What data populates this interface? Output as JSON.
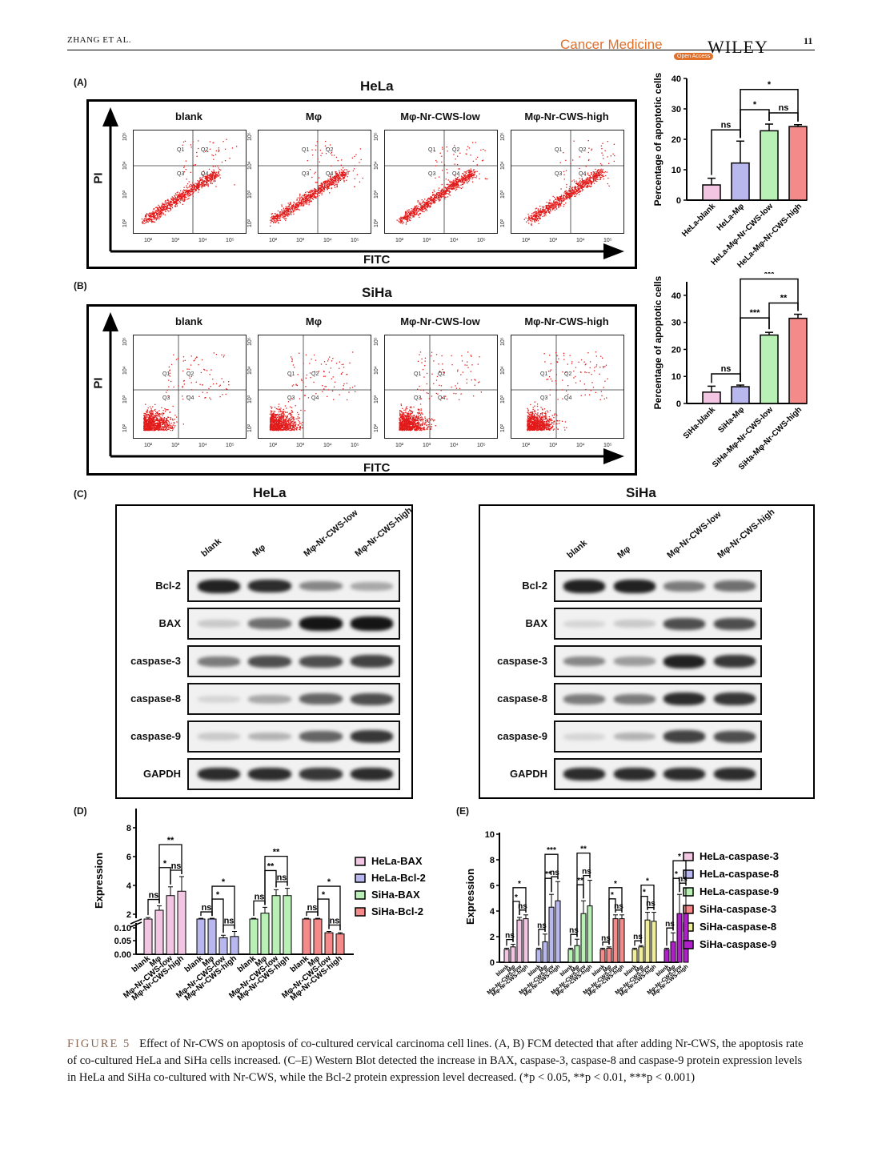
{
  "header": {
    "authors": "ZHANG ET AL.",
    "journal": "Cancer Medicine",
    "open_access": "Open Access",
    "publisher": "WILEY",
    "page": "11"
  },
  "panels": {
    "A": "(A)",
    "B": "(B)",
    "C": "(C)",
    "D": "(D)",
    "E": "(E)"
  },
  "flow": {
    "hela_title": "HeLa",
    "siha_title": "SiHa",
    "conditions": [
      "blank",
      "Mφ",
      "Mφ-Nr-CWS-low",
      "Mφ-Nr-CWS-high"
    ],
    "y_axis": "PI",
    "x_axis": "FITC",
    "quadrants": [
      "Q1",
      "Q2",
      "Q3",
      "Q4"
    ],
    "x_ticks": [
      "10²",
      "10³",
      "10⁴",
      "10⁵"
    ],
    "y_ticks": [
      "10²",
      "10³",
      "10⁴",
      "10⁵"
    ]
  },
  "western": {
    "hela_title": "HeLa",
    "siha_title": "SiHa",
    "lanes": [
      "blank",
      "Mφ",
      "Mφ-Nr-CWS-low",
      "Mφ-Nr-CWS-high"
    ],
    "proteins": [
      "Bcl-2",
      "BAX",
      "caspase-3",
      "caspase-8",
      "caspase-9",
      "GAPDH"
    ],
    "band_intensity_hela": [
      [
        0.9,
        0.85,
        0.45,
        0.3
      ],
      [
        0.15,
        0.55,
        0.95,
        0.95
      ],
      [
        0.5,
        0.7,
        0.7,
        0.75
      ],
      [
        0.1,
        0.3,
        0.6,
        0.7
      ],
      [
        0.15,
        0.25,
        0.6,
        0.8
      ],
      [
        0.85,
        0.85,
        0.8,
        0.85
      ]
    ],
    "band_intensity_siha": [
      [
        0.9,
        0.9,
        0.5,
        0.55
      ],
      [
        0.1,
        0.15,
        0.7,
        0.7
      ],
      [
        0.45,
        0.35,
        0.9,
        0.8
      ],
      [
        0.5,
        0.5,
        0.85,
        0.8
      ],
      [
        0.1,
        0.25,
        0.75,
        0.7
      ],
      [
        0.85,
        0.85,
        0.85,
        0.85
      ]
    ]
  },
  "chart_data": [
    {
      "type": "bar",
      "categories": [
        "HeLa-blank",
        "HeLa-Mφ",
        "HeLa-Mφ-Nr-CWS-low",
        "HeLa-Mφ-Nr-CWS-high"
      ],
      "values": [
        5,
        12.2,
        22.8,
        24.2
      ],
      "errors": [
        2.2,
        7.2,
        2.2,
        0.6
      ],
      "colors": [
        "#f2c6e3",
        "#b9b8ee",
        "#b8f0b5",
        "#f58a8a"
      ],
      "ylabel": "Percentage of apoptotic cells",
      "ylim": [
        0,
        40
      ],
      "yticks": [
        0,
        10,
        20,
        30,
        40
      ],
      "significance": [
        {
          "pair": [
            0,
            1
          ],
          "label": "ns"
        },
        {
          "pair": [
            1,
            2
          ],
          "label": "*"
        },
        {
          "pair": [
            1,
            3
          ],
          "label": "*"
        },
        {
          "pair": [
            2,
            3
          ],
          "label": "ns"
        }
      ]
    },
    {
      "type": "bar",
      "categories": [
        "SiHa-blank",
        "SiHa-Mφ",
        "SiHa-Mφ-Nr-CWS-low",
        "SiHa-Mφ-Nr-CWS-high"
      ],
      "values": [
        4.2,
        6.2,
        25.3,
        31.5
      ],
      "errors": [
        2.2,
        0.6,
        1.0,
        1.5
      ],
      "colors": [
        "#f2c6e3",
        "#b9b8ee",
        "#b8f0b5",
        "#f58a8a"
      ],
      "ylabel": "Percentage of apoptotic cells",
      "ylim": [
        0,
        45
      ],
      "yticks": [
        0,
        10,
        20,
        30,
        40
      ],
      "significance": [
        {
          "pair": [
            0,
            1
          ],
          "label": "ns"
        },
        {
          "pair": [
            1,
            2
          ],
          "label": "***"
        },
        {
          "pair": [
            1,
            3
          ],
          "label": "***"
        },
        {
          "pair": [
            2,
            3
          ],
          "label": "**"
        }
      ]
    },
    {
      "type": "bar",
      "ylabel": "Expression",
      "axis_break": true,
      "yticks": [
        "0.00",
        "0.05",
        "0.10",
        "2",
        "4",
        "6",
        "8"
      ],
      "categories": [
        "blank",
        "Mφ",
        "Mφ-Nr-CWS-low",
        "Mφ-Nr-CWS-high"
      ],
      "series": [
        {
          "name": "HeLa-BAX",
          "values": [
            1.0,
            1.6,
            2.6,
            2.9
          ],
          "errors": [
            0.1,
            0.3,
            0.6,
            1.0
          ],
          "color": "#f2c6e3",
          "sig": [
            "ns",
            "*",
            "ns",
            "**"
          ]
        },
        {
          "name": "HeLa-Bcl-2",
          "values": [
            1.0,
            1.0,
            0.065,
            0.07
          ],
          "errors": [
            0.05,
            0.05,
            0.01,
            0.02
          ],
          "color": "#b9b8ee",
          "sig": [
            "ns",
            "*",
            "ns",
            "*"
          ]
        },
        {
          "name": "SiHa-BAX",
          "values": [
            1.0,
            1.4,
            2.6,
            2.6
          ],
          "errors": [
            0.05,
            0.4,
            0.4,
            0.5
          ],
          "color": "#b8f0b5",
          "sig": [
            "ns",
            "**",
            "ns",
            "**"
          ]
        },
        {
          "name": "SiHa-Bcl-2",
          "values": [
            1.0,
            1.0,
            0.085,
            0.08
          ],
          "errors": [
            0.05,
            0.05,
            0.005,
            0.005
          ],
          "color": "#f58a8a",
          "sig": [
            "ns",
            "*",
            "ns",
            "*"
          ]
        }
      ]
    },
    {
      "type": "bar",
      "ylabel": "Expression",
      "ylim": [
        0,
        10
      ],
      "yticks": [
        0,
        2,
        4,
        6,
        8,
        10
      ],
      "categories": [
        "blank",
        "Mφ",
        "Mφ-Nr-CWS-low",
        "Mφ-Nr-CWS-high"
      ],
      "series": [
        {
          "name": "HeLa-caspase-3",
          "values": [
            1.0,
            1.2,
            3.3,
            3.4
          ],
          "errors": [
            0.1,
            0.2,
            0.2,
            0.3
          ],
          "color": "#f2c6e3",
          "sig": [
            "ns",
            "*",
            "ns",
            "*"
          ]
        },
        {
          "name": "HeLa-caspase-8",
          "values": [
            1.0,
            1.6,
            4.3,
            4.8
          ],
          "errors": [
            0.1,
            0.6,
            1.0,
            1.5
          ],
          "color": "#b9b8ee",
          "sig": [
            "ns",
            "**",
            "ns",
            "***"
          ]
        },
        {
          "name": "HeLa-caspase-9",
          "values": [
            1.0,
            1.3,
            3.8,
            4.4
          ],
          "errors": [
            0.1,
            0.5,
            1.0,
            2.0
          ],
          "color": "#b8f0b5",
          "sig": [
            "ns",
            "**",
            "ns",
            "**"
          ]
        },
        {
          "name": "SiHa-caspase-3",
          "values": [
            1.0,
            1.1,
            3.4,
            3.4
          ],
          "errors": [
            0.1,
            0.1,
            0.3,
            0.3
          ],
          "color": "#f58a8a",
          "sig": [
            "ns",
            "*",
            "ns",
            "*"
          ]
        },
        {
          "name": "SiHa-caspase-8",
          "values": [
            1.0,
            1.2,
            3.3,
            3.2
          ],
          "errors": [
            0.1,
            0.1,
            0.6,
            0.7
          ],
          "color": "#f0ee9a",
          "sig": [
            "ns",
            "*",
            "ns",
            "*"
          ]
        },
        {
          "name": "SiHa-caspase-9",
          "values": [
            1.0,
            1.6,
            3.8,
            3.8
          ],
          "errors": [
            0.1,
            0.7,
            1.5,
            2.0
          ],
          "color": "#b020c8",
          "sig": [
            "ns",
            "*",
            "ns",
            "*"
          ]
        }
      ]
    }
  ],
  "caption": {
    "label": "FIGURE 5",
    "text": "Effect of Nr-CWS on apoptosis of co-cultured cervical carcinoma cell lines. (A, B) FCM detected that after adding Nr-CWS, the apoptosis rate of co-cultured HeLa and SiHa cells increased. (C–E) Western Blot detected the increase in BAX, caspase-3, caspase-8 and caspase-9 protein expression levels in HeLa and SiHa co-cultured with Nr-CWS, while the Bcl-2 protein expression level decreased. (*p < 0.05, **p < 0.01, ***p < 0.001)"
  }
}
